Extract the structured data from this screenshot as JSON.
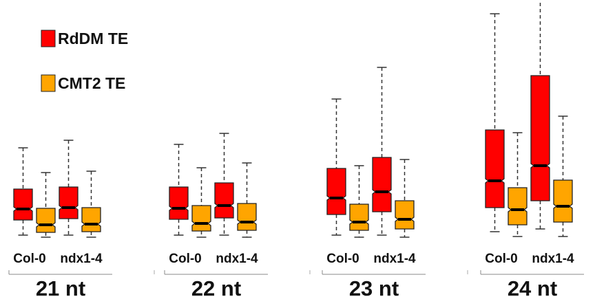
{
  "chart_data": {
    "type": "boxplot",
    "title": "",
    "xlabel": "",
    "ylabel": "",
    "y_units_note": "no axis shown; values in relative units (arbitrary)",
    "ylim": [
      0,
      350
    ],
    "grid": false,
    "legend": {
      "placement": "top-left",
      "entries": [
        {
          "label": "RdDM TE",
          "color": "#ff0000"
        },
        {
          "label": "CMT2 TE",
          "color": "#ffa500"
        }
      ]
    },
    "genotype_labels": [
      "Col-0",
      "ndx1-4"
    ],
    "groups": [
      {
        "label": "21 nt",
        "boxes": [
          {
            "genotype": "Col-0",
            "series": "RdDM TE",
            "whisker_low": 8,
            "q1": 30,
            "median": 46,
            "q3": 75,
            "whisker_high": 135
          },
          {
            "genotype": "Col-0",
            "series": "CMT2 TE",
            "whisker_low": 5,
            "q1": 12,
            "median": 23,
            "q3": 47,
            "whisker_high": 99
          },
          {
            "genotype": "ndx1-4",
            "series": "RdDM TE",
            "whisker_low": 8,
            "q1": 32,
            "median": 48,
            "q3": 78,
            "whisker_high": 146
          },
          {
            "genotype": "ndx1-4",
            "series": "CMT2 TE",
            "whisker_low": 5,
            "q1": 13,
            "median": 24,
            "q3": 48,
            "whisker_high": 101
          }
        ]
      },
      {
        "label": "22 nt",
        "boxes": [
          {
            "genotype": "Col-0",
            "series": "RdDM TE",
            "whisker_low": 8,
            "q1": 31,
            "median": 47,
            "q3": 78,
            "whisker_high": 140
          },
          {
            "genotype": "Col-0",
            "series": "CMT2 TE",
            "whisker_low": 5,
            "q1": 14,
            "median": 25,
            "q3": 51,
            "whisker_high": 106
          },
          {
            "genotype": "ndx1-4",
            "series": "RdDM TE",
            "whisker_low": 8,
            "q1": 33,
            "median": 51,
            "q3": 84,
            "whisker_high": 156
          },
          {
            "genotype": "ndx1-4",
            "series": "CMT2 TE",
            "whisker_low": 5,
            "q1": 15,
            "median": 27,
            "q3": 54,
            "whisker_high": 113
          }
        ]
      },
      {
        "label": "23 nt",
        "boxes": [
          {
            "genotype": "Col-0",
            "series": "RdDM TE",
            "whisker_low": 8,
            "q1": 38,
            "median": 62,
            "q3": 105,
            "whisker_high": 206
          },
          {
            "genotype": "Col-0",
            "series": "CMT2 TE",
            "whisker_low": 5,
            "q1": 15,
            "median": 27,
            "q3": 53,
            "whisker_high": 109
          },
          {
            "genotype": "ndx1-4",
            "series": "RdDM TE",
            "whisker_low": 8,
            "q1": 42,
            "median": 71,
            "q3": 121,
            "whisker_high": 252
          },
          {
            "genotype": "ndx1-4",
            "series": "CMT2 TE",
            "whisker_low": 5,
            "q1": 17,
            "median": 31,
            "q3": 58,
            "whisker_high": 118
          }
        ]
      },
      {
        "label": "24 nt",
        "boxes": [
          {
            "genotype": "Col-0",
            "series": "RdDM TE",
            "whisker_low": 13,
            "q1": 48,
            "median": 87,
            "q3": 161,
            "whisker_high": 330
          },
          {
            "genotype": "Col-0",
            "series": "CMT2 TE",
            "whisker_low": 6,
            "q1": 23,
            "median": 45,
            "q3": 77,
            "whisker_high": 157
          },
          {
            "genotype": "ndx1-4",
            "series": "RdDM TE",
            "whisker_low": 17,
            "q1": 58,
            "median": 109,
            "q3": 240,
            "whisker_high": 360
          },
          {
            "genotype": "ndx1-4",
            "series": "CMT2 TE",
            "whisker_low": 6,
            "q1": 27,
            "median": 50,
            "q3": 88,
            "whisker_high": 181
          }
        ]
      }
    ]
  }
}
